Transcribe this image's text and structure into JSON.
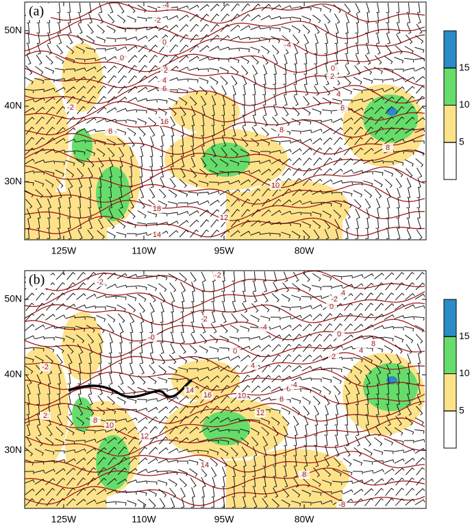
{
  "panels": [
    {
      "label": "(a)",
      "xlim": [
        -132.3,
        -57.2
      ],
      "ylim": [
        22.3,
        53.8
      ],
      "xticks": [
        {
          "value": -125,
          "label": "125W"
        },
        {
          "value": -110,
          "label": "110W"
        },
        {
          "value": -95,
          "label": "95W"
        },
        {
          "value": -80,
          "label": "80W"
        }
      ],
      "yticks": [
        {
          "value": 50,
          "label": "50N"
        },
        {
          "value": 40,
          "label": "40N"
        },
        {
          "value": 30,
          "label": "30N"
        }
      ],
      "colorbar": {
        "lim": [
          0,
          20
        ],
        "ticks": [
          5,
          10,
          15
        ],
        "colors": [
          "#ffffff",
          "#fde28a",
          "#66dd6a",
          "#2b8bc6"
        ]
      },
      "contour_labels": [
        "-4",
        "-2",
        "0",
        "-4",
        "0",
        "2",
        "4",
        "6",
        "-2",
        "16",
        "8",
        "8",
        "4",
        "6",
        "2",
        "0",
        "8",
        "10",
        "18",
        "12",
        "14"
      ]
    },
    {
      "label": "(b)",
      "xlim": [
        -132.3,
        -57.2
      ],
      "ylim": [
        22.3,
        53.8
      ],
      "xticks": [
        {
          "value": -125,
          "label": "125W"
        },
        {
          "value": -110,
          "label": "110W"
        },
        {
          "value": -95,
          "label": "95W"
        },
        {
          "value": -80,
          "label": "80W"
        }
      ],
      "yticks": [
        {
          "value": 50,
          "label": "50N"
        },
        {
          "value": 40,
          "label": "40N"
        },
        {
          "value": 30,
          "label": "30N"
        }
      ],
      "colorbar": {
        "lim": [
          0,
          20
        ],
        "ticks": [
          5,
          10,
          15
        ],
        "colors": [
          "#ffffff",
          "#fde28a",
          "#66dd6a",
          "#2b8bc6"
        ]
      },
      "contour_labels": [
        "-2",
        "-2",
        "4",
        "-2",
        "0",
        "-2",
        "-4",
        "0",
        "8",
        "4",
        "2",
        "-0",
        "0",
        "4",
        "-2",
        "14",
        "16",
        "10",
        "6",
        "8",
        "12",
        "10",
        "8",
        "2",
        "12",
        "14",
        "8",
        "-8",
        "-4"
      ]
    }
  ]
}
